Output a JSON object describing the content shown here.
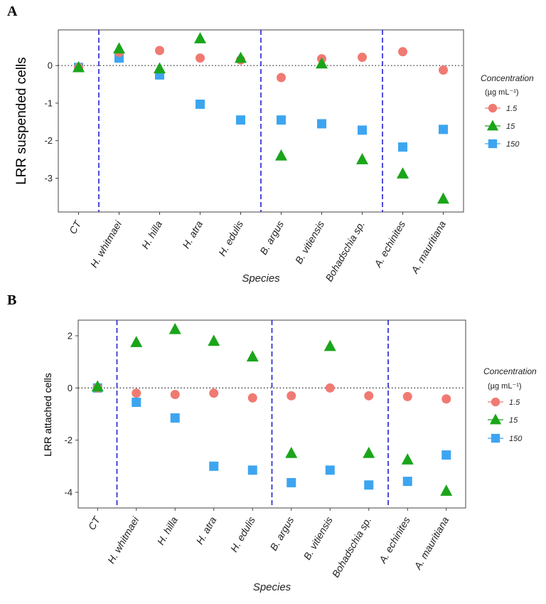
{
  "colors": {
    "1.5": "#F07A72",
    "15": "#1AA51A",
    "150": "#3DA5F0",
    "separator": "#2020D0",
    "zero_line": "#333333"
  },
  "chart_data": [
    {
      "panel_label": "A",
      "type": "scatter",
      "ylabel": "LRR suspended cells",
      "xlabel": "Species",
      "ylim": [
        -3.9,
        0.95
      ],
      "yticks": [
        "0",
        "-1",
        "-2",
        "-3"
      ],
      "ytick_values": [
        0,
        -1,
        -2,
        -3
      ],
      "categories": [
        "CT",
        "H. whitmaei",
        "H. hilla",
        "H. atra",
        "H. edulis",
        "B. argus",
        "B. vitiensis",
        "Bohadschia sp.",
        "A. echinites",
        "A. mauritiana"
      ],
      "group_separators_after": [
        0,
        4,
        7
      ],
      "zero_line": true,
      "legend": {
        "title": "Concentration",
        "unit": "(µg mL⁻¹)",
        "position": "right",
        "entries": [
          "1.5",
          "15",
          "150"
        ]
      },
      "series": [
        {
          "name": "1.5",
          "marker": "circle",
          "values": [
            -0.05,
            0.35,
            0.4,
            0.2,
            0.15,
            -0.32,
            0.18,
            0.22,
            0.37,
            -0.12
          ]
        },
        {
          "name": "15",
          "marker": "triangle",
          "values": [
            -0.05,
            0.45,
            -0.08,
            0.72,
            0.2,
            -2.4,
            0.05,
            -2.5,
            -2.88,
            -3.55
          ]
        },
        {
          "name": "150",
          "marker": "square",
          "values": [
            -0.05,
            0.2,
            -0.25,
            -1.03,
            -1.45,
            -1.45,
            -1.55,
            -1.72,
            -2.17,
            -1.7
          ]
        }
      ]
    },
    {
      "panel_label": "B",
      "type": "scatter",
      "ylabel": "LRR attached cells",
      "xlabel": "Species",
      "ylim": [
        -4.6,
        2.6
      ],
      "yticks": [
        "2",
        "0",
        "-2",
        "-4"
      ],
      "ytick_values": [
        2,
        0,
        -2,
        -4
      ],
      "categories": [
        "CT",
        "H. whitmaei",
        "H. hilla",
        "H. atra",
        "H. edulis",
        "B. argus",
        "B. vitiensis",
        "Bohadschia sp.",
        "A. echinites",
        "A. mauritiana"
      ],
      "group_separators_after": [
        0,
        4,
        7
      ],
      "zero_line": true,
      "legend": {
        "title": "Concentration",
        "unit": "(µg mL⁻¹)",
        "position": "right",
        "entries": [
          "1.5",
          "15",
          "150"
        ]
      },
      "series": [
        {
          "name": "1.5",
          "marker": "circle",
          "values": [
            0.0,
            -0.2,
            -0.25,
            -0.2,
            -0.38,
            -0.3,
            0.0,
            -0.3,
            -0.33,
            -0.42
          ]
        },
        {
          "name": "15",
          "marker": "triangle",
          "values": [
            0.05,
            1.75,
            2.25,
            1.8,
            1.2,
            -2.5,
            1.6,
            -2.5,
            -2.75,
            -3.95
          ]
        },
        {
          "name": "150",
          "marker": "square",
          "values": [
            0.0,
            -0.55,
            -1.15,
            -3.0,
            -3.15,
            -3.63,
            -3.15,
            -3.72,
            -3.58,
            -2.57
          ]
        }
      ]
    }
  ]
}
